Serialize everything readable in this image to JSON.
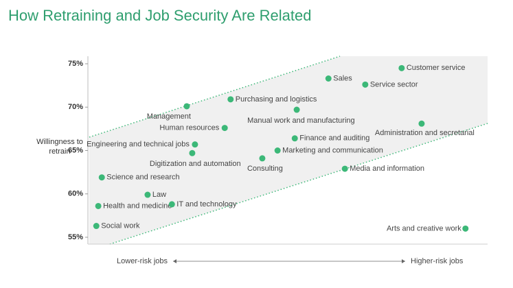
{
  "chart_data": {
    "type": "scatter",
    "title": "How Retraining and Job Security Are Related",
    "ylabel": "Willingness to retrain",
    "xlabel_left": "Lower-risk jobs",
    "xlabel_right": "Higher-risk jobs",
    "color": "#3cb878",
    "categories": [
      "Customer service",
      "Sales",
      "Service sector",
      "Purchasing and logistics",
      "Management",
      "Manual work and manufacturing",
      "Administration and secretarial",
      "Human resources",
      "Finance and auditing",
      "Engineering and technical jobs",
      "Digitization and automation",
      "Marketing and communication",
      "Consulting",
      "Media and information",
      "Science and research",
      "Law",
      "Health and medicine",
      "IT and technology",
      "Social work",
      "Arts and creative work"
    ],
    "x": [
      79.8,
      61.1,
      70.5,
      36.1,
      24.9,
      53.0,
      84.9,
      34.6,
      52.5,
      27.0,
      26.3,
      48.1,
      44.2,
      65.3,
      3.2,
      14.9,
      2.3,
      21.1,
      1.8,
      96.1
    ],
    "values": [
      74.5,
      73.3,
      72.6,
      70.9,
      70.1,
      69.7,
      68.1,
      67.6,
      66.4,
      65.7,
      64.7,
      65.0,
      64.1,
      62.9,
      61.9,
      59.9,
      58.6,
      58.8,
      56.3,
      56.0
    ],
    "xlim": [
      0,
      100
    ],
    "ylim": [
      55,
      75
    ],
    "yticks": [
      {
        "value": 55,
        "label": "55%"
      },
      {
        "value": 60,
        "label": "60%"
      },
      {
        "value": 65,
        "label": "65%"
      },
      {
        "value": 70,
        "label": "70%"
      },
      {
        "value": 75,
        "label": "75%"
      }
    ]
  }
}
